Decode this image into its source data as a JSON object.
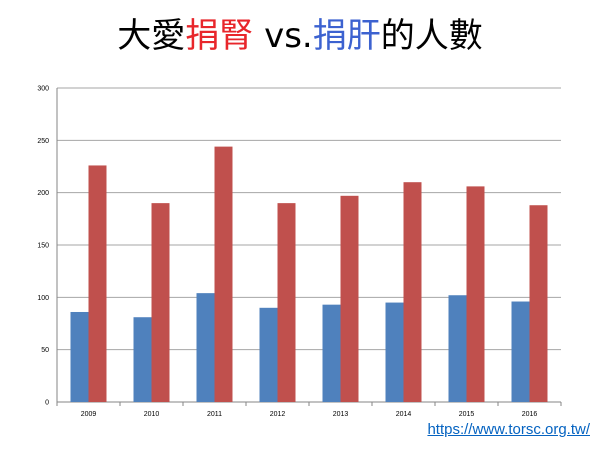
{
  "title": {
    "part1": "大愛",
    "part2": "捐腎",
    "part3": " vs.",
    "part4": "捐肝",
    "part5": "的人數"
  },
  "colors": {
    "title_red": "#e8262b",
    "title_blue": "#3c62d0",
    "series_liver": "#4f81bd",
    "series_kidney": "#c0504d",
    "link": "#0563c1"
  },
  "link_text": "https://www.torsc.org.tw/",
  "chart_data": {
    "type": "bar",
    "categories": [
      "2009",
      "2010",
      "2011",
      "2012",
      "2013",
      "2014",
      "2015",
      "2016"
    ],
    "series": [
      {
        "values": [
          86,
          81,
          104,
          90,
          93,
          95,
          102,
          96
        ]
      },
      {
        "values": [
          226,
          190,
          244,
          190,
          197,
          210,
          206,
          188
        ]
      }
    ],
    "ylim": [
      0,
      300
    ],
    "yticks": [
      "0",
      "50",
      "100",
      "150",
      "200",
      "250",
      "300"
    ],
    "grid": true,
    "legend": "none"
  }
}
